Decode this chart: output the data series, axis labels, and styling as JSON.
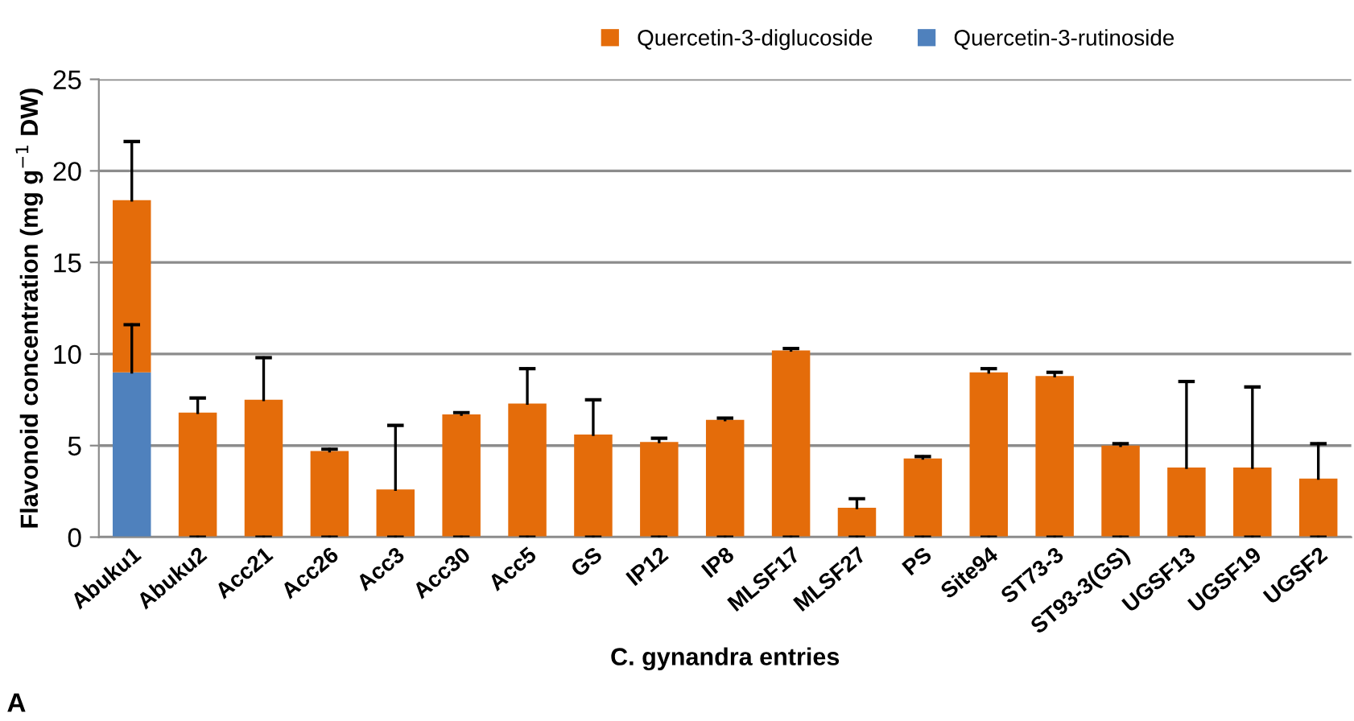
{
  "chart_data": {
    "type": "bar",
    "stacked": true,
    "xlabel": "C. gynandra entries",
    "ylabel": "Flavonoid concentration (mg g$^{−1}$ DW)",
    "categories": [
      "Abuku1",
      "Abuku2",
      "Acc21",
      "Acc26",
      "Acc3",
      "Acc30",
      "Acc5",
      "GS",
      "IP12",
      "IP8",
      "MLSF17",
      "MLSF27",
      "PS",
      "Site94",
      "ST73-3",
      "ST93-3(GS)",
      "UGSF13",
      "UGSF19",
      "UGSF2"
    ],
    "series": [
      {
        "name": "Quercetin-3-rutinoside",
        "color": "#4f81bd",
        "values": [
          9.0,
          0,
          0,
          0,
          0,
          0,
          0,
          0,
          0,
          0,
          0,
          0,
          0,
          0,
          0,
          0,
          0,
          0,
          0
        ],
        "errors": [
          [
            9.0,
            11.6
          ],
          0,
          0,
          0,
          0,
          0,
          0,
          0,
          0,
          0,
          0,
          0,
          0,
          0,
          0,
          0,
          0,
          0,
          0
        ]
      },
      {
        "name": "Quercetin-3-diglucoside",
        "color": "#e46c0a",
        "values": [
          9.4,
          6.8,
          7.5,
          4.7,
          2.6,
          6.7,
          7.3,
          5.6,
          5.2,
          6.4,
          10.2,
          1.6,
          4.3,
          9.0,
          8.8,
          5.0,
          3.8,
          3.8,
          3.2
        ],
        "errors": [
          [
            18.4,
            21.6
          ],
          [
            6.8,
            7.6
          ],
          [
            7.5,
            9.8
          ],
          [
            4.7,
            4.8
          ],
          [
            2.6,
            6.1
          ],
          [
            6.7,
            6.8
          ],
          [
            7.3,
            9.2
          ],
          [
            5.6,
            7.5
          ],
          [
            5.2,
            5.4
          ],
          [
            6.4,
            6.5
          ],
          [
            10.2,
            10.3
          ],
          [
            1.6,
            2.1
          ],
          [
            4.3,
            4.4
          ],
          [
            9.0,
            9.2
          ],
          [
            8.8,
            9.0
          ],
          [
            5.0,
            5.1
          ],
          [
            3.8,
            8.5
          ],
          [
            3.8,
            8.2
          ],
          [
            3.2,
            5.1
          ]
        ]
      }
    ],
    "ylim": [
      0,
      25
    ],
    "yticks": [
      0,
      5,
      10,
      15,
      20,
      25
    ],
    "grid": "y",
    "legend": "top",
    "annotations": [
      "A"
    ]
  }
}
